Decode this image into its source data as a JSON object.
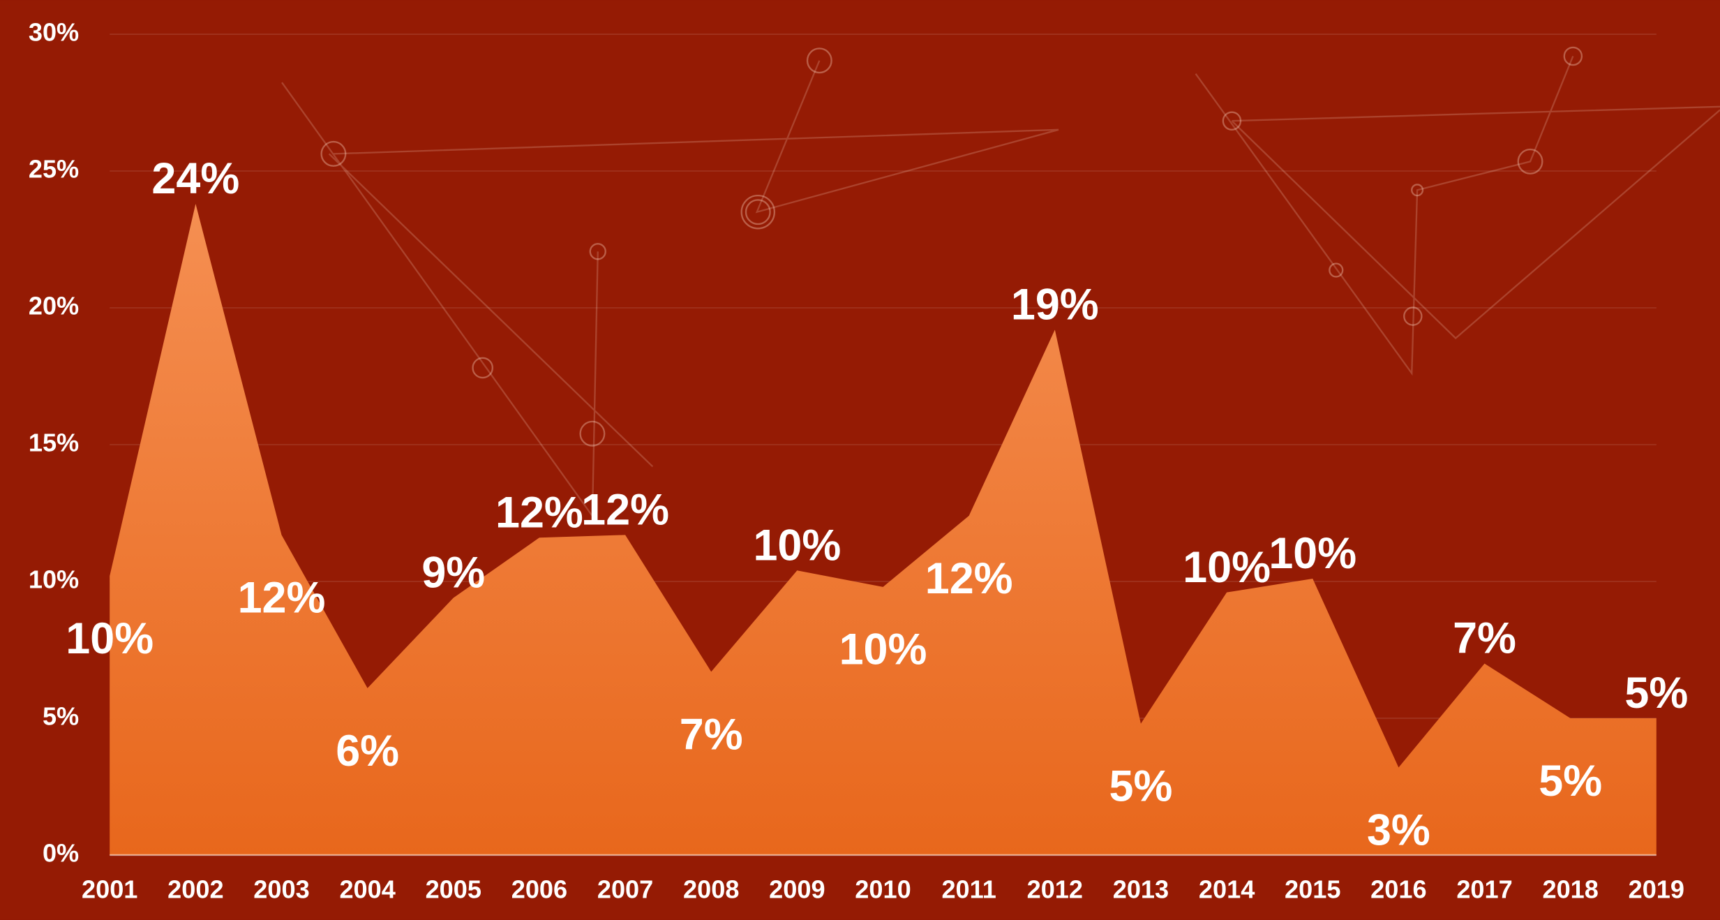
{
  "chart_data": {
    "type": "area",
    "categories": [
      "2001",
      "2002",
      "2003",
      "2004",
      "2005",
      "2006",
      "2007",
      "2008",
      "2009",
      "2010",
      "2011",
      "2012",
      "2013",
      "2014",
      "2015",
      "2016",
      "2017",
      "2018",
      "2019"
    ],
    "values": [
      10.2,
      23.8,
      11.7,
      6.1,
      9.4,
      11.6,
      11.7,
      6.7,
      10.4,
      9.8,
      12.4,
      19.2,
      4.8,
      9.6,
      10.1,
      3.2,
      7.0,
      5.0,
      5.0
    ],
    "value_labels": [
      "10%",
      "24%",
      "12%",
      "6%",
      "9%",
      "12%",
      "12%",
      "7%",
      "10%",
      "10%",
      "12%",
      "19%",
      "5%",
      "10%",
      "10%",
      "3%",
      "7%",
      "5%",
      "5%"
    ],
    "color_top": "#f58f52",
    "color_bottom": "#e8671c",
    "background": "#951b04",
    "ylim": [
      0,
      30
    ],
    "yticks": [
      {
        "value": 0,
        "label": "0%"
      },
      {
        "value": 5,
        "label": "5%"
      },
      {
        "value": 10,
        "label": "10%"
      },
      {
        "value": 15,
        "label": "15%"
      },
      {
        "value": 20,
        "label": "20%"
      },
      {
        "value": 25,
        "label": "25%"
      },
      {
        "value": 30,
        "label": "30%"
      }
    ],
    "grid": true
  }
}
